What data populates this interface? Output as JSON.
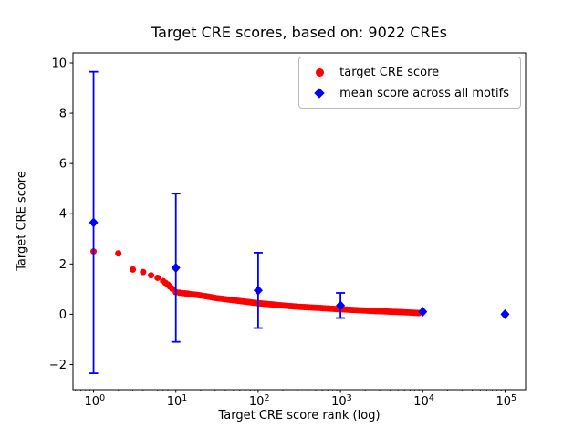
{
  "chart_data": {
    "type": "scatter",
    "title": "Target CRE scores, based on: 9022 CREs",
    "xlabel": "Target CRE score rank (log)",
    "ylabel": "Target CRE score",
    "x_scale": "log",
    "xlim_log10": [
      -0.25,
      5.25
    ],
    "ylim": [
      -3.0,
      10.4
    ],
    "y_ticks": [
      -2,
      0,
      2,
      4,
      6,
      8,
      10
    ],
    "x_ticks": [
      {
        "label": "10^0",
        "value": 1
      },
      {
        "label": "10^1",
        "value": 10
      },
      {
        "label": "10^2",
        "value": 100
      },
      {
        "label": "10^3",
        "value": 1000
      },
      {
        "label": "10^4",
        "value": 10000
      },
      {
        "label": "10^5",
        "value": 100000
      }
    ],
    "grid": false,
    "legend_position": "upper right",
    "n_cres": 9022,
    "series": [
      {
        "name": "target CRE score",
        "marker": "circle",
        "color": "#ff0000",
        "points": [
          [
            1,
            2.5
          ],
          [
            2,
            2.42
          ],
          [
            3,
            1.78
          ],
          [
            4,
            1.68
          ],
          [
            5,
            1.55
          ],
          [
            6,
            1.45
          ],
          [
            7,
            1.32
          ],
          [
            8,
            1.18
          ],
          [
            9,
            1.02
          ],
          [
            10,
            0.88
          ],
          [
            11,
            0.86
          ],
          [
            12,
            0.84
          ],
          [
            13,
            0.83
          ],
          [
            14,
            0.82
          ],
          [
            15,
            0.8
          ],
          [
            16,
            0.79
          ],
          [
            17,
            0.78
          ],
          [
            18,
            0.77
          ],
          [
            19,
            0.76
          ],
          [
            20,
            0.75
          ],
          [
            25,
            0.7
          ],
          [
            30,
            0.65
          ],
          [
            40,
            0.6
          ],
          [
            50,
            0.56
          ],
          [
            70,
            0.5
          ],
          [
            100,
            0.44
          ],
          [
            150,
            0.39
          ],
          [
            200,
            0.35
          ],
          [
            300,
            0.3
          ],
          [
            500,
            0.26
          ],
          [
            700,
            0.23
          ],
          [
            1000,
            0.2
          ],
          [
            1500,
            0.17
          ],
          [
            2000,
            0.15
          ],
          [
            3000,
            0.12
          ],
          [
            5000,
            0.09
          ],
          [
            7000,
            0.07
          ],
          [
            9022,
            0.05
          ]
        ]
      },
      {
        "name": "mean score across all motifs",
        "marker": "diamond",
        "color": "#0000ff",
        "points": [
          {
            "x": 1,
            "y": 3.65,
            "yerr": 6.0
          },
          {
            "x": 10,
            "y": 1.85,
            "yerr": 2.95
          },
          {
            "x": 100,
            "y": 0.95,
            "yerr": 1.5
          },
          {
            "x": 1000,
            "y": 0.35,
            "yerr": 0.5
          },
          {
            "x": 10000,
            "y": 0.1,
            "yerr": 0.12
          },
          {
            "x": 100000,
            "y": 0.0,
            "yerr": 0.05
          }
        ]
      }
    ]
  }
}
